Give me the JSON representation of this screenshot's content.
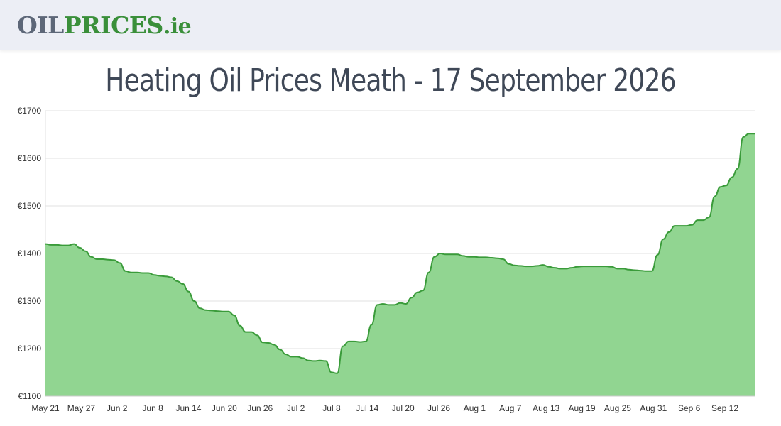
{
  "header": {
    "logo_part1": "OIL",
    "logo_part2": "PRICES",
    "logo_part3": ".ie"
  },
  "colors": {
    "fill": "#91d591",
    "line": "#3a9b3a",
    "grid": "#e2e2e2",
    "logo_grey": "#5d6778",
    "logo_green": "#3a8f3a",
    "title": "#3f4857"
  },
  "chart_data": {
    "type": "area",
    "title": "Heating Oil Prices Meath - 17 September 2026",
    "xlabel": "",
    "ylabel": "",
    "ylim": [
      1100,
      1700
    ],
    "y_ticks": [
      1100,
      1200,
      1300,
      1400,
      1500,
      1600,
      1700
    ],
    "y_tick_labels": [
      "€1100",
      "€1200",
      "€1300",
      "€1400",
      "€1500",
      "€1600",
      "€1700"
    ],
    "x_tick_labels": [
      "May 21",
      "May 27",
      "Jun 2",
      "Jun 8",
      "Jun 14",
      "Jun 20",
      "Jun 26",
      "Jul 2",
      "Jul 8",
      "Jul 14",
      "Jul 20",
      "Jul 26",
      "Aug 1",
      "Aug 7",
      "Aug 13",
      "Aug 19",
      "Aug 25",
      "Aug 31",
      "Sep 6",
      "Sep 12"
    ],
    "x_tick_days": [
      0,
      6,
      12,
      18,
      24,
      30,
      36,
      42,
      48,
      54,
      60,
      66,
      72,
      78,
      84,
      90,
      96,
      102,
      108,
      114
    ],
    "x_range_days": [
      0,
      119
    ],
    "grid": true,
    "legend": "none",
    "series": [
      {
        "values": [
          1420,
          1418,
          1418,
          1417,
          1417,
          1420,
          1412,
          1405,
          1393,
          1388,
          1388,
          1387,
          1386,
          1380,
          1363,
          1360,
          1360,
          1359,
          1359,
          1355,
          1353,
          1352,
          1350,
          1342,
          1336,
          1320,
          1300,
          1285,
          1281,
          1280,
          1279,
          1278,
          1278,
          1270,
          1248,
          1235,
          1235,
          1228,
          1213,
          1212,
          1208,
          1198,
          1188,
          1183,
          1183,
          1180,
          1175,
          1174,
          1175,
          1174,
          1150,
          1148,
          1205,
          1215,
          1215,
          1214,
          1215,
          1250,
          1292,
          1294,
          1292,
          1292,
          1296,
          1294,
          1307,
          1318,
          1322,
          1360,
          1393,
          1400,
          1398,
          1398,
          1398,
          1395,
          1393,
          1393,
          1392,
          1392,
          1391,
          1390,
          1388,
          1378,
          1375,
          1374,
          1373,
          1373,
          1374,
          1376,
          1372,
          1370,
          1368,
          1368,
          1370,
          1372,
          1373,
          1373,
          1373,
          1373,
          1373,
          1372,
          1368,
          1368,
          1366,
          1365,
          1364,
          1363,
          1363,
          1397,
          1430,
          1445,
          1458,
          1458,
          1458,
          1460,
          1470,
          1470,
          1476,
          1520,
          1540,
          1543,
          1560,
          1578,
          1645,
          1652,
          1652
        ]
      }
    ]
  }
}
